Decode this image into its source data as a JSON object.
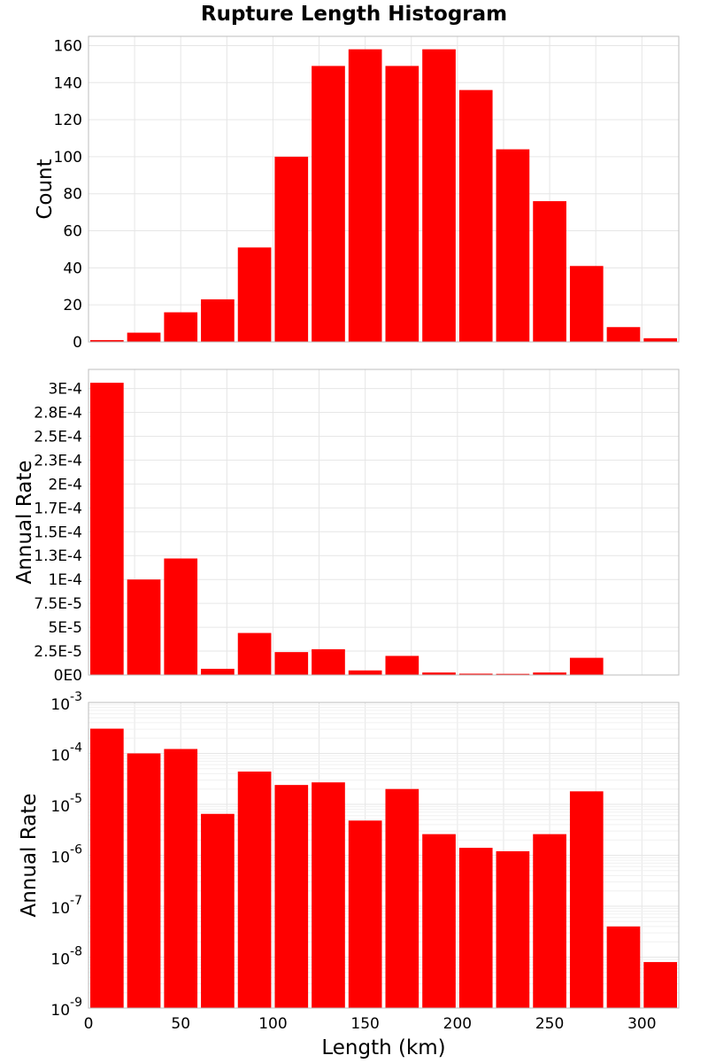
{
  "chart_data": [
    {
      "type": "bar",
      "panel": "count",
      "title": "Rupture Length Histogram",
      "xlabel": "",
      "ylabel": "Count",
      "bin_width": 20,
      "x": [
        10,
        30,
        50,
        70,
        90,
        110,
        130,
        150,
        170,
        190,
        210,
        230,
        250,
        270,
        290,
        310
      ],
      "values": [
        1,
        5,
        16,
        23,
        51,
        100,
        149,
        158,
        149,
        158,
        136,
        104,
        76,
        41,
        8,
        2
      ],
      "xlim": [
        0,
        320
      ],
      "ylim": [
        0,
        165
      ],
      "yticks": [
        0,
        20,
        40,
        60,
        80,
        100,
        120,
        140,
        160
      ],
      "ytick_labels": [
        "0",
        "20",
        "40",
        "60",
        "80",
        "100",
        "120",
        "140",
        "160"
      ],
      "grid": true,
      "color": "#ff0000"
    },
    {
      "type": "bar",
      "panel": "rate-linear",
      "xlabel": "",
      "ylabel": "Annual Rate",
      "bin_width": 20,
      "x": [
        10,
        30,
        50,
        70,
        90,
        110,
        130,
        150,
        170,
        190,
        210,
        230,
        250,
        270,
        290,
        310
      ],
      "values": [
        0.000306,
        0.0001,
        0.000122,
        6.5e-06,
        4.4e-05,
        2.4e-05,
        2.7e-05,
        4.8e-06,
        2e-05,
        2.6e-06,
        1.4e-06,
        1.2e-06,
        2.6e-06,
        1.8e-05,
        4e-08,
        8e-09
      ],
      "xlim": [
        0,
        320
      ],
      "ylim": [
        0,
        0.00032
      ],
      "yticks": [
        0,
        2.5e-05,
        5e-05,
        7.5e-05,
        0.0001,
        0.000125,
        0.00015,
        0.000175,
        0.0002,
        0.000225,
        0.00025,
        0.000275,
        0.0003
      ],
      "ytick_labels": [
        "0E0",
        "2.5E-5",
        "5E-5",
        "7.5E-5",
        "1E-4",
        "1.3E-4",
        "1.5E-4",
        "1.7E-4",
        "2E-4",
        "2.3E-4",
        "2.5E-4",
        "2.8E-4",
        "3E-4"
      ],
      "grid": true,
      "color": "#ff0000"
    },
    {
      "type": "bar",
      "panel": "rate-log",
      "xlabel": "Length (km)",
      "ylabel": "Annual Rate",
      "yscale": "log",
      "bin_width": 20,
      "x": [
        10,
        30,
        50,
        70,
        90,
        110,
        130,
        150,
        170,
        190,
        210,
        230,
        250,
        270,
        290,
        310
      ],
      "values": [
        0.000306,
        0.0001,
        0.000122,
        6.5e-06,
        4.4e-05,
        2.4e-05,
        2.7e-05,
        4.8e-06,
        2e-05,
        2.6e-06,
        1.4e-06,
        1.2e-06,
        2.6e-06,
        1.8e-05,
        4e-08,
        8e-09
      ],
      "xlim": [
        0,
        320
      ],
      "ylim": [
        1e-09,
        0.001
      ],
      "yticks": [
        1e-09,
        1e-08,
        1e-07,
        1e-06,
        1e-05,
        0.0001,
        0.001
      ],
      "ytick_base": "10",
      "ytick_exponents": [
        "-9",
        "-8",
        "-7",
        "-6",
        "-5",
        "-4",
        "-3"
      ],
      "xticks": [
        0,
        50,
        100,
        150,
        200,
        250,
        300
      ],
      "xtick_labels": [
        "0",
        "50",
        "100",
        "150",
        "200",
        "250",
        "300"
      ],
      "grid": true,
      "color": "#ff0000"
    }
  ]
}
